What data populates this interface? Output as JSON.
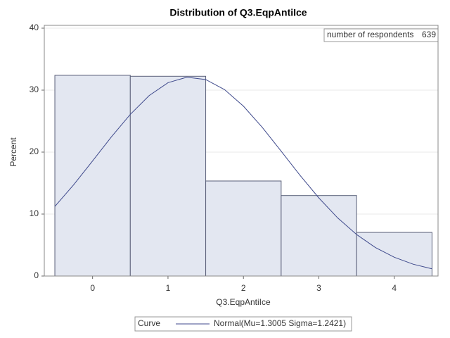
{
  "chart_data": {
    "type": "histogram",
    "title": "Distribution of Q3.EqpAntiIce",
    "xlabel": "Q3.EqpAntiIce",
    "ylabel": "Percent",
    "bins": [
      -0.5,
      0.5,
      1.5,
      2.5,
      3.5,
      4.5
    ],
    "values": [
      32.39,
      32.24,
      15.34,
      12.99,
      7.04
    ],
    "color": "#e3e7f1",
    "edge_color": "#5a6079",
    "xlim": [
      -0.64,
      4.58
    ],
    "xticks": [
      0,
      1,
      2,
      3,
      4
    ],
    "ylim": [
      0,
      40
    ],
    "yticks": [
      0,
      10,
      20,
      30,
      40
    ],
    "grid": true,
    "inset": {
      "label": "number of respondents",
      "value": 639
    },
    "legend_title": "Curve",
    "curve": {
      "name": "Normal(Mu=1.3005 Sigma=1.2421)",
      "color": "#3f4a8c",
      "x": [
        -0.5,
        -0.25,
        0,
        0.25,
        0.5,
        0.75,
        1,
        1.25,
        1.5,
        1.75,
        2,
        2.25,
        2.5,
        2.75,
        3,
        3.25,
        3.5,
        3.75,
        4,
        4.25,
        4.5
      ],
      "values": [
        11.23,
        14.74,
        18.57,
        22.46,
        26.09,
        29.12,
        31.2,
        32.09,
        31.71,
        30.08,
        27.41,
        23.98,
        20.15,
        16.26,
        12.6,
        9.37,
        6.7,
        4.6,
        3.03,
        1.91,
        1.16
      ]
    }
  }
}
